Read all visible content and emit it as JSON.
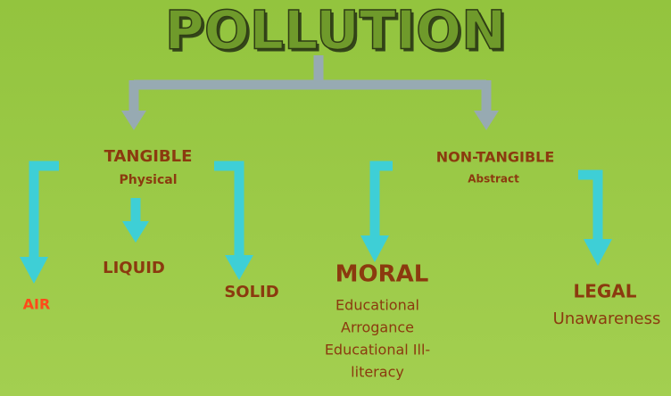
{
  "title": "POLLUTION",
  "nodes": [
    {
      "label": "TANGIBLE",
      "sublabel": "Physical"
    },
    {
      "label": "NON-TANGIBLE",
      "sublabel": "Abstract"
    },
    {
      "label": "AIR"
    },
    {
      "label": "LIQUID"
    },
    {
      "label": "SOLID"
    },
    {
      "label": "MORAL",
      "lines": [
        "Educational",
        "Arrogance",
        "Educational Ill-",
        "literacy"
      ]
    },
    {
      "label": "LEGAL",
      "lines": [
        "Unawareness"
      ]
    }
  ]
}
